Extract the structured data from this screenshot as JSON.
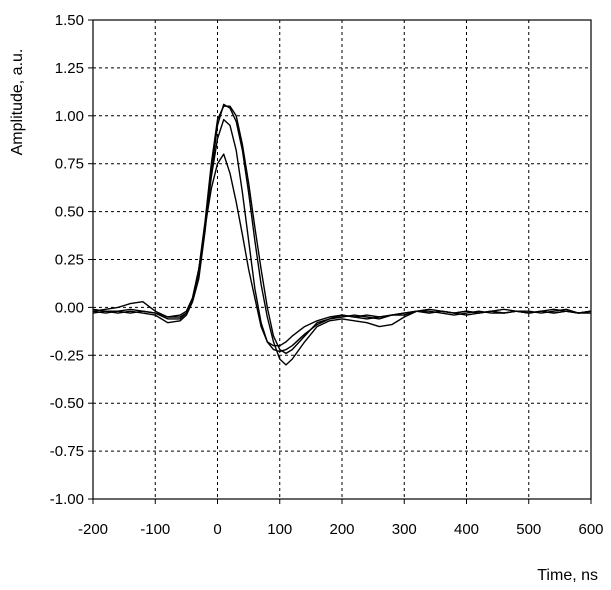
{
  "chart_data": {
    "type": "line",
    "title": "",
    "xlabel": "Time, ns",
    "ylabel": "Amplitude, a.u.",
    "xlim": [
      -200,
      600
    ],
    "ylim": [
      -1.0,
      1.5
    ],
    "xticks": [
      -200,
      -100,
      0,
      100,
      200,
      300,
      400,
      500,
      600
    ],
    "xtick_labels": [
      "-200",
      "-100",
      "0",
      "100",
      "200",
      "300",
      "400",
      "500",
      "600"
    ],
    "yticks": [
      -1.0,
      -0.75,
      -0.5,
      -0.25,
      0.0,
      0.25,
      0.5,
      0.75,
      1.0,
      1.25,
      1.5
    ],
    "ytick_labels": [
      "-1.00",
      "-0.75",
      "-0.50",
      "-0.25",
      "0.00",
      "0.25",
      "0.50",
      "0.75",
      "1.00",
      "1.25",
      "1.50"
    ],
    "grid": true,
    "line_color": "#000000",
    "series": [
      {
        "x": [
          -200,
          -180,
          -160,
          -140,
          -120,
          -100,
          -80,
          -60,
          -50,
          -40,
          -30,
          -20,
          -10,
          0,
          10,
          20,
          30,
          40,
          50,
          60,
          70,
          80,
          90,
          100,
          110,
          120,
          140,
          160,
          180,
          200,
          220,
          240,
          260,
          280,
          300,
          320,
          340,
          360,
          380,
          400,
          420,
          440,
          460,
          480,
          500,
          520,
          540,
          560,
          580,
          600
        ],
        "y": [
          -0.02,
          -0.01,
          0.0,
          0.02,
          0.03,
          -0.02,
          -0.05,
          -0.05,
          -0.03,
          0.05,
          0.2,
          0.45,
          0.75,
          0.98,
          1.05,
          1.05,
          1.0,
          0.85,
          0.65,
          0.42,
          0.2,
          0.0,
          -0.15,
          -0.22,
          -0.24,
          -0.22,
          -0.15,
          -0.08,
          -0.06,
          -0.05,
          -0.04,
          -0.05,
          -0.06,
          -0.04,
          -0.03,
          -0.02,
          -0.01,
          -0.02,
          -0.03,
          -0.02,
          -0.03,
          -0.02,
          -0.03,
          -0.02,
          -0.03,
          -0.02,
          -0.01,
          -0.02,
          -0.03,
          -0.03
        ]
      },
      {
        "x": [
          -200,
          -180,
          -160,
          -140,
          -120,
          -100,
          -80,
          -60,
          -50,
          -40,
          -30,
          -20,
          -10,
          0,
          10,
          20,
          30,
          40,
          50,
          60,
          70,
          80,
          90,
          100,
          110,
          120,
          140,
          160,
          180,
          200,
          220,
          240,
          260,
          280,
          300,
          320,
          340,
          360,
          380,
          400,
          420,
          440,
          460,
          480,
          500,
          520,
          540,
          560,
          580,
          600
        ],
        "y": [
          -0.03,
          -0.02,
          -0.03,
          -0.02,
          -0.03,
          -0.04,
          -0.08,
          -0.07,
          -0.04,
          0.03,
          0.15,
          0.4,
          0.7,
          0.95,
          1.06,
          1.04,
          0.97,
          0.82,
          0.6,
          0.35,
          0.12,
          -0.05,
          -0.18,
          -0.27,
          -0.3,
          -0.27,
          -0.18,
          -0.1,
          -0.07,
          -0.06,
          -0.07,
          -0.08,
          -0.1,
          -0.09,
          -0.05,
          -0.02,
          -0.03,
          -0.02,
          -0.03,
          -0.02,
          -0.03,
          -0.02,
          -0.01,
          -0.02,
          -0.03,
          -0.02,
          -0.03,
          -0.02,
          -0.03,
          -0.02
        ]
      },
      {
        "x": [
          -200,
          -180,
          -160,
          -140,
          -120,
          -100,
          -80,
          -60,
          -50,
          -40,
          -30,
          -20,
          -10,
          0,
          10,
          20,
          30,
          40,
          50,
          60,
          70,
          80,
          90,
          100,
          110,
          120,
          140,
          160,
          180,
          200,
          220,
          240,
          260,
          280,
          300,
          320,
          340,
          360,
          380,
          400,
          420,
          440,
          460,
          480,
          500,
          520,
          540,
          560,
          580,
          600
        ],
        "y": [
          -0.01,
          -0.02,
          -0.02,
          -0.01,
          -0.02,
          -0.03,
          -0.06,
          -0.06,
          -0.03,
          0.04,
          0.18,
          0.42,
          0.68,
          0.88,
          0.98,
          0.95,
          0.82,
          0.6,
          0.35,
          0.1,
          -0.08,
          -0.18,
          -0.22,
          -0.23,
          -0.22,
          -0.2,
          -0.14,
          -0.09,
          -0.06,
          -0.04,
          -0.05,
          -0.06,
          -0.05,
          -0.04,
          -0.04,
          -0.02,
          -0.02,
          -0.03,
          -0.04,
          -0.03,
          -0.02,
          -0.03,
          -0.03,
          -0.02,
          -0.02,
          -0.03,
          -0.02,
          -0.01,
          -0.03,
          -0.02
        ]
      },
      {
        "x": [
          -200,
          -180,
          -160,
          -140,
          -120,
          -100,
          -80,
          -60,
          -50,
          -40,
          -30,
          -20,
          -10,
          0,
          10,
          20,
          30,
          40,
          50,
          60,
          70,
          80,
          90,
          100,
          110,
          120,
          140,
          160,
          180,
          200,
          220,
          240,
          260,
          280,
          300,
          320,
          340,
          360,
          380,
          400,
          420,
          440,
          460,
          480,
          500,
          520,
          540,
          560,
          580,
          600
        ],
        "y": [
          -0.02,
          -0.03,
          -0.02,
          -0.03,
          -0.02,
          -0.03,
          -0.05,
          -0.04,
          -0.02,
          0.05,
          0.2,
          0.42,
          0.62,
          0.75,
          0.8,
          0.7,
          0.55,
          0.38,
          0.2,
          0.05,
          -0.1,
          -0.18,
          -0.2,
          -0.2,
          -0.18,
          -0.15,
          -0.1,
          -0.07,
          -0.05,
          -0.04,
          -0.05,
          -0.04,
          -0.05,
          -0.04,
          -0.03,
          -0.02,
          -0.03,
          -0.02,
          -0.03,
          -0.04,
          -0.03,
          -0.02,
          -0.03,
          -0.02,
          -0.03,
          -0.02,
          -0.03,
          -0.02,
          -0.03,
          -0.02
        ]
      }
    ]
  }
}
